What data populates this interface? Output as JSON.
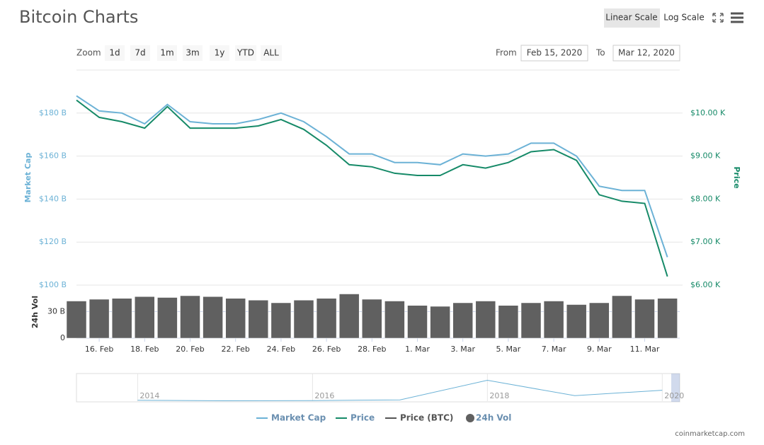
{
  "chart_data": {
    "type": "line",
    "title": "Bitcoin Charts",
    "categories": [
      null,
      "16. Feb",
      null,
      "18. Feb",
      null,
      "20. Feb",
      null,
      "22. Feb",
      null,
      "24. Feb",
      null,
      "26. Feb",
      null,
      "28. Feb",
      null,
      "1. Mar",
      null,
      "3. Mar",
      null,
      "5. Mar",
      null,
      "7. Mar",
      null,
      "9. Mar",
      null,
      "11. Mar",
      null
    ],
    "ylim": [
      100,
      200
    ],
    "yticks": [
      {
        "value": 100,
        "label": "$100 B"
      },
      {
        "value": 120,
        "label": "$120 B"
      },
      {
        "value": 140,
        "label": "$140 B"
      },
      {
        "value": 160,
        "label": "$160 B"
      },
      {
        "value": 180,
        "label": "$180 B"
      }
    ],
    "y_label": "Market Cap",
    "y2lim": [
      6,
      11
    ],
    "y2ticks": [
      {
        "value": 6,
        "label": "$6.00 K"
      },
      {
        "value": 7,
        "label": "$7.00 K"
      },
      {
        "value": 8,
        "label": "$8.00 K"
      },
      {
        "value": 9,
        "label": "$9.00 K"
      },
      {
        "value": 10,
        "label": "$10.00 K"
      }
    ],
    "y2_label": "Price",
    "vol_ylim": [
      0,
      60
    ],
    "vol_yticks": [
      0,
      {
        "value": 30,
        "label": "30 B"
      }
    ],
    "vol_label": "24h Vol",
    "grid": true,
    "series": [
      {
        "name": "Market Cap",
        "color": "#6cb2d6",
        "values": [
          188,
          181,
          180,
          175,
          184,
          176,
          175,
          175,
          177,
          180,
          176,
          169,
          161,
          161,
          157,
          157,
          156,
          161,
          160,
          161,
          166,
          166,
          160,
          146,
          144,
          144,
          113
        ]
      },
      {
        "name": "Price",
        "color": "#168a68",
        "axis": "y2",
        "values": [
          10.3,
          9.9,
          9.8,
          9.65,
          10.15,
          9.65,
          9.65,
          9.65,
          9.7,
          9.85,
          9.62,
          9.25,
          8.8,
          8.75,
          8.6,
          8.55,
          8.55,
          8.8,
          8.72,
          8.85,
          9.1,
          9.15,
          8.9,
          8.1,
          7.95,
          7.9,
          6.2
        ]
      },
      {
        "name": "24h Vol",
        "color": "#606060",
        "axis": "vol",
        "values": [
          42,
          44,
          45,
          47,
          46,
          48,
          47,
          45,
          43,
          40,
          43,
          45,
          50,
          44,
          42,
          37,
          36,
          40,
          42,
          37,
          40,
          42,
          38,
          40,
          48,
          44,
          45
        ]
      }
    ],
    "extra_legend": [
      {
        "name": "Price (BTC)",
        "color": "#555555"
      }
    ],
    "navigator": {
      "x": [
        2014,
        2015,
        2016,
        2017,
        2018,
        2019,
        2020
      ],
      "values": [
        10,
        4,
        7,
        15,
        250,
        65,
        130
      ],
      "xlim": [
        2013.3,
        2020.2
      ],
      "ylim": [
        0,
        330
      ],
      "xticks": [
        2014,
        2016,
        2018,
        2020
      ],
      "color": "#6cb2d6"
    }
  },
  "ui": {
    "scale_buttons": [
      "Linear Scale",
      "Log Scale"
    ],
    "zoom_label": "Zoom",
    "zoom_buttons": [
      "1d",
      "7d",
      "1m",
      "3m",
      "1y",
      "YTD",
      "ALL"
    ],
    "from_label": "From",
    "from_date": "Feb 15, 2020",
    "to_label": "To",
    "to_date": "Mar 12, 2020",
    "footer": "coinmarketcap.com"
  }
}
